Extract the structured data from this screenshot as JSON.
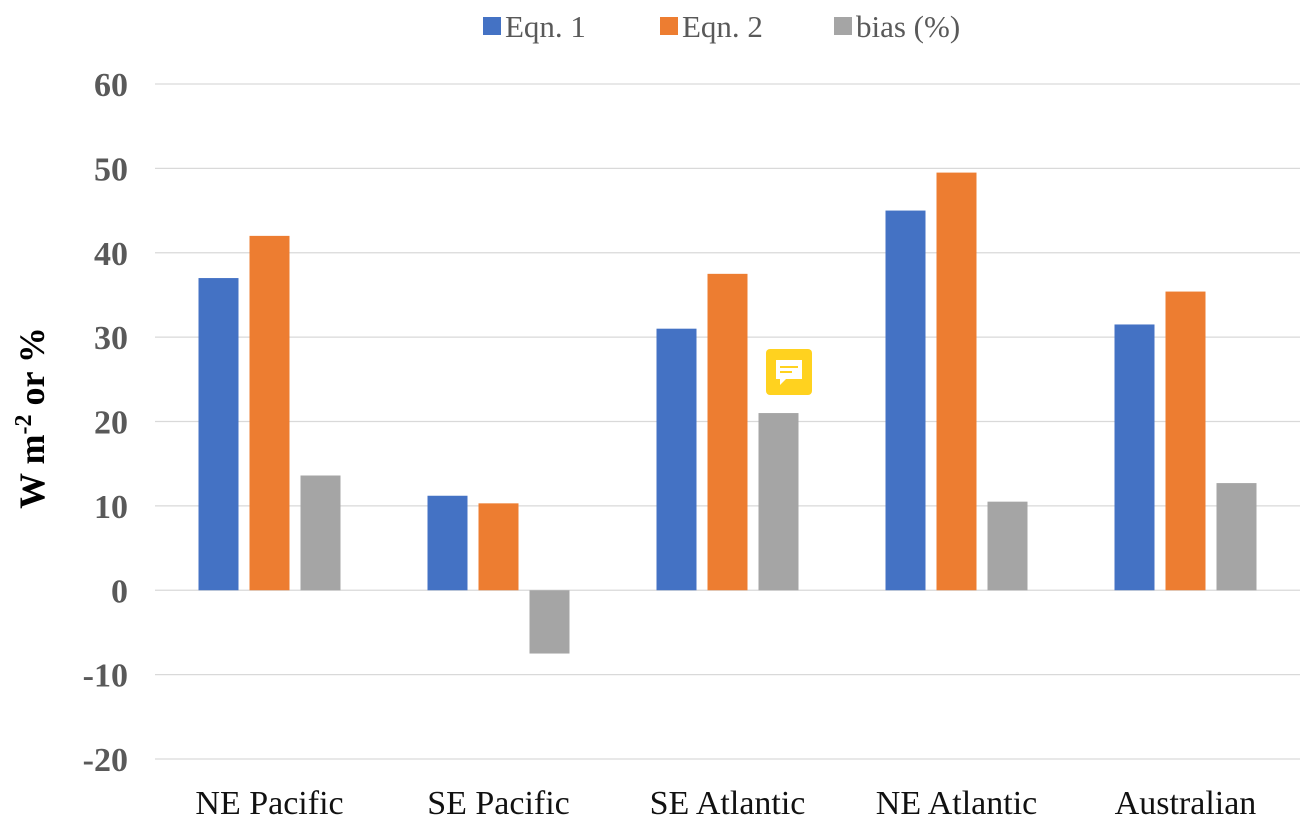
{
  "chart_data": {
    "type": "bar",
    "categories": [
      "NE Pacific",
      "SE Pacific",
      "SE Atlantic",
      "NE Atlantic",
      "Australian"
    ],
    "series": [
      {
        "name": "Eqn. 1",
        "color": "#4472C4",
        "values": [
          37,
          11.2,
          31,
          45,
          31.5
        ]
      },
      {
        "name": "Eqn. 2",
        "color": "#ED7D31",
        "values": [
          42,
          10.3,
          37.5,
          49.5,
          35.4
        ]
      },
      {
        "name": "bias (%)",
        "color": "#A5A5A5",
        "values": [
          13.6,
          -7.5,
          21,
          10.5,
          12.7
        ]
      }
    ],
    "ylim": [
      -20,
      60
    ],
    "yticks": [
      -20,
      -10,
      0,
      10,
      20,
      30,
      40,
      50,
      60
    ],
    "ylabel_main": "W m",
    "ylabel_sup": "-2",
    "ylabel_tail": " or %",
    "grid": true,
    "legend_position": "top",
    "comment_icon": "comment-icon"
  }
}
